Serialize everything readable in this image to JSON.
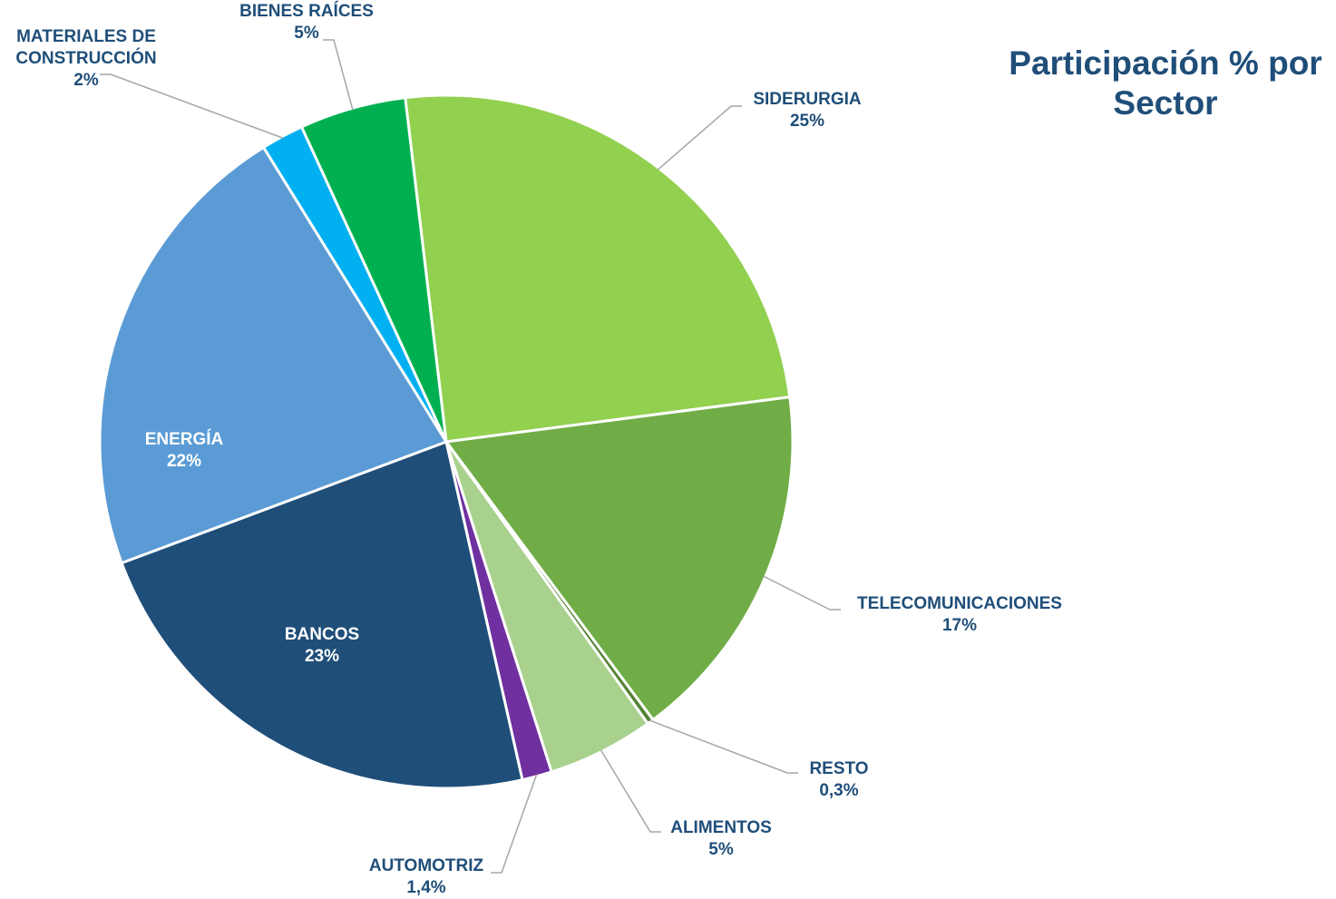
{
  "chart_data": {
    "type": "pie",
    "title": "Participación % por Sector",
    "categories": [
      "SIDERURGIA",
      "TELECOMUNICACIONES",
      "RESTO",
      "ALIMENTOS",
      "AUTOMOTRIZ",
      "BANCOS",
      "ENERGÍA",
      "MATERIALES DE CONSTRUCCIÓN",
      "BIENES RAÍCES"
    ],
    "values": [
      25,
      17,
      0.3,
      5,
      1.4,
      23,
      22,
      2,
      5
    ],
    "value_labels": [
      "25%",
      "17%",
      "0,3%",
      "5%",
      "1,4%",
      "23%",
      "22%",
      "2%",
      "5%"
    ],
    "colors": [
      "#92d050",
      "#70ad47",
      "#548235",
      "#a9d18e",
      "#7030a0",
      "#1f4e79",
      "#5b9bd5",
      "#00b0f0",
      "#00b050"
    ]
  }
}
